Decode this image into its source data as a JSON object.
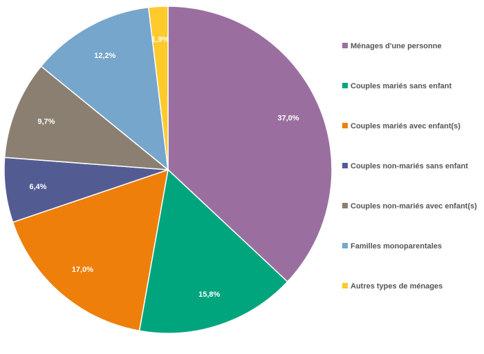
{
  "chart_data": {
    "type": "pie",
    "legend_position": "right",
    "slices": [
      {
        "name": "Ménages d'une personne",
        "value": 37.0,
        "label": "37,0%",
        "color": "#9a6fa0"
      },
      {
        "name": "Couples mariés sans enfant",
        "value": 15.8,
        "label": "15,8%",
        "color": "#00a57e"
      },
      {
        "name": "Couples mariés avec enfant(s)",
        "value": 17.0,
        "label": "17,0%",
        "color": "#ee7f0a"
      },
      {
        "name": "Couples non-mariés sans enfant",
        "value": 6.4,
        "label": "6,4%",
        "color": "#535c92"
      },
      {
        "name": "Couples non-mariés avec enfant(s)",
        "value": 9.7,
        "label": "9,7%",
        "color": "#8a7f70"
      },
      {
        "name": "Familles monoparentales",
        "value": 12.2,
        "label": "12,2%",
        "color": "#76a6cc"
      },
      {
        "name": "Autres types de ménages",
        "value": 1.9,
        "label": "1,9%",
        "color": "#ffca2c"
      }
    ]
  }
}
